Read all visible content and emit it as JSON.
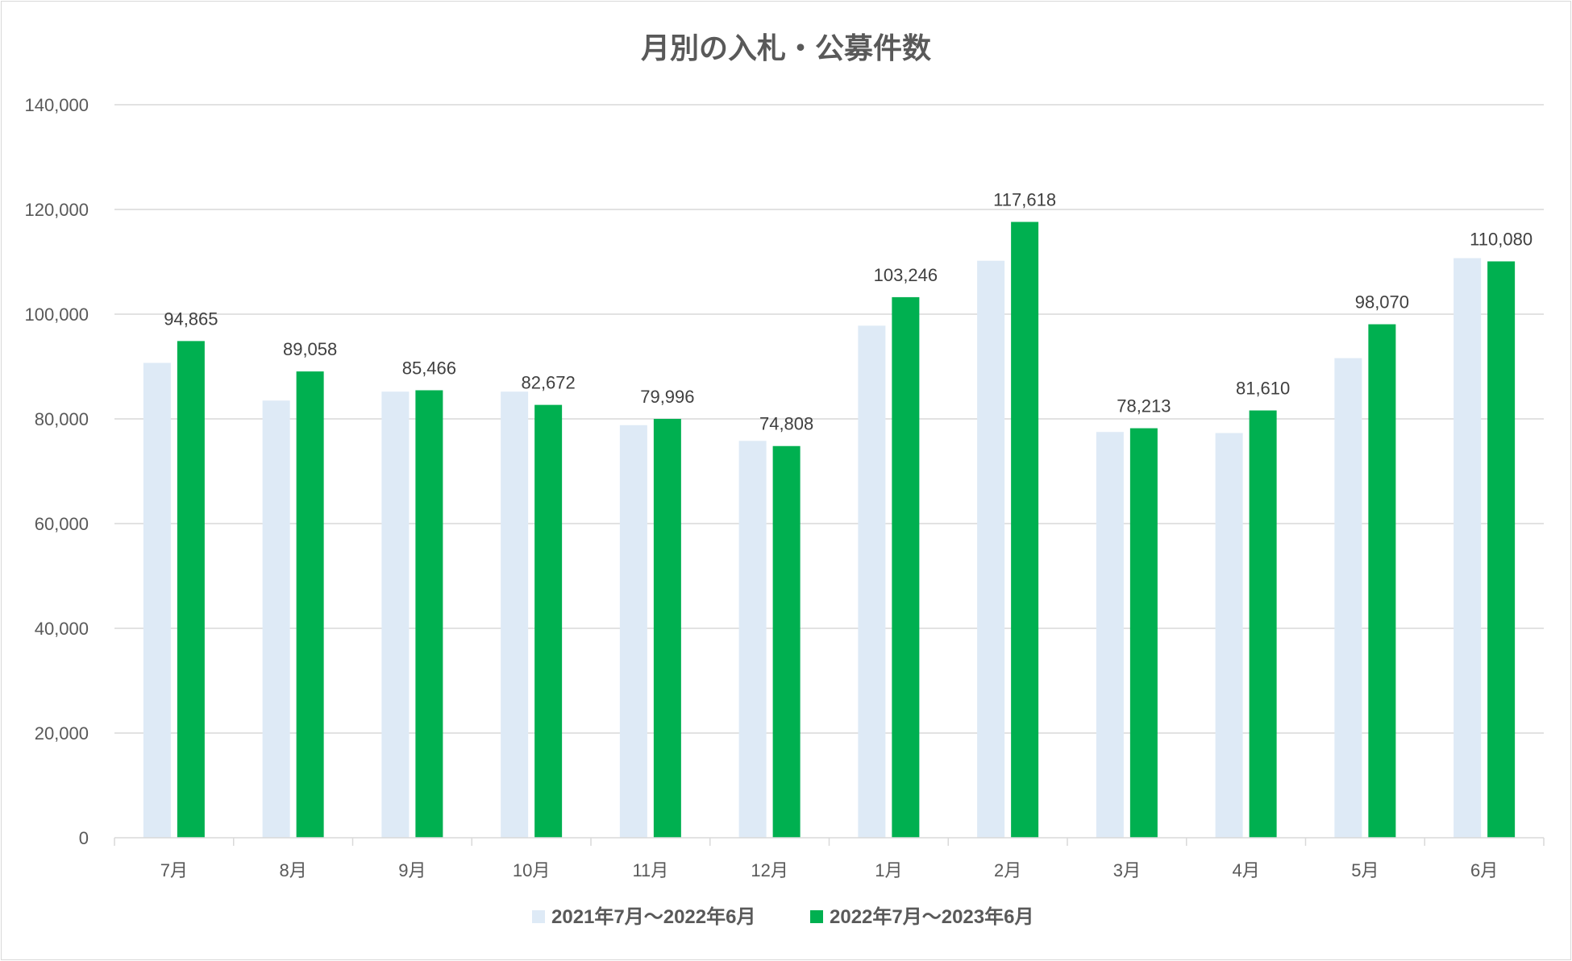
{
  "chart_data": {
    "type": "bar",
    "title": "月別の入札・公募件数",
    "xlabel": "",
    "ylabel": "",
    "categories": [
      "7月",
      "8月",
      "9月",
      "10月",
      "11月",
      "12月",
      "1月",
      "2月",
      "3月",
      "4月",
      "5月",
      "6月"
    ],
    "series": [
      {
        "name": "2021年7月～2022年6月",
        "color": "#deeaf6",
        "values": [
          90700,
          83500,
          85200,
          85200,
          78800,
          75800,
          97800,
          110200,
          77500,
          77300,
          91600,
          110700
        ],
        "show_labels": false
      },
      {
        "name": "2022年7月～2023年6月",
        "color": "#00b050",
        "values": [
          94865,
          89058,
          85466,
          82672,
          79996,
          74808,
          103246,
          117618,
          78213,
          81610,
          98070,
          110080
        ],
        "show_labels": true
      }
    ],
    "ylim": [
      0,
      140000
    ],
    "yticks": [
      0,
      20000,
      40000,
      60000,
      80000,
      100000,
      120000,
      140000
    ],
    "ytick_labels": [
      "0",
      "20,000",
      "40,000",
      "60,000",
      "80,000",
      "100,000",
      "120,000",
      "140,000"
    ],
    "grid": true,
    "legend_position": "bottom",
    "colors": {
      "grid": "#d9d9d9",
      "axis_text": "#595959",
      "title_text": "#595959",
      "label_text": "#404040"
    }
  }
}
